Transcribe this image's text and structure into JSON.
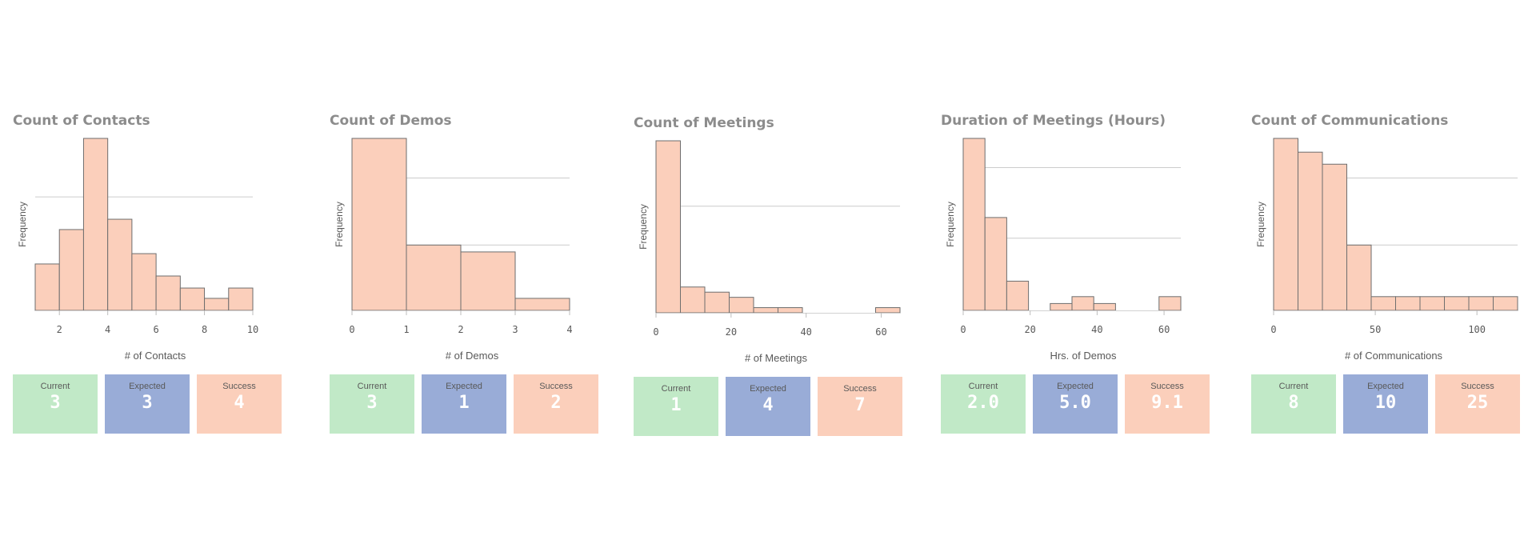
{
  "colors": {
    "bar_fill": "#fbcfbb",
    "bar_stroke": "#6e6e6e",
    "current": "#c1e9c7",
    "expected": "#99acd7",
    "success": "#fbcfbb",
    "title": "#8c8c8c"
  },
  "chart_data": [
    {
      "type": "bar",
      "title": "Count of Contacts",
      "xlabel": "# of Contacts",
      "ylabel": "Frequency",
      "x_tick_labels": [
        "2",
        "4",
        "6",
        "8",
        "10"
      ],
      "x_ticks": [
        2,
        4,
        6,
        8,
        10
      ],
      "xlim": [
        1,
        10
      ],
      "bins": [
        [
          1,
          2
        ],
        [
          2,
          3
        ],
        [
          3,
          4
        ],
        [
          4,
          5
        ],
        [
          5,
          6
        ],
        [
          6,
          7
        ],
        [
          7,
          8
        ],
        [
          8,
          9
        ],
        [
          9,
          10
        ]
      ],
      "values": [
        27,
        47,
        100,
        53,
        33,
        20,
        13,
        7,
        13
      ],
      "ylim": [
        0,
        100
      ],
      "gridlines": [
        66
      ],
      "grid": true,
      "kpis": [
        {
          "label": "Current",
          "value": "3"
        },
        {
          "label": "Expected",
          "value": "3"
        },
        {
          "label": "Success",
          "value": "4"
        }
      ]
    },
    {
      "type": "bar",
      "title": "Count of Demos",
      "xlabel": "# of Demos",
      "ylabel": "Frequency",
      "x_tick_labels": [
        "0",
        "1",
        "2",
        "3",
        "4"
      ],
      "x_ticks": [
        0,
        1,
        2,
        3,
        4
      ],
      "xlim": [
        0,
        4
      ],
      "bins": [
        [
          0,
          1
        ],
        [
          1,
          2
        ],
        [
          2,
          3
        ],
        [
          3,
          4
        ]
      ],
      "values": [
        100,
        38,
        34,
        7
      ],
      "ylim": [
        0,
        100
      ],
      "gridlines": [
        38,
        77
      ],
      "grid": true,
      "kpis": [
        {
          "label": "Current",
          "value": "3"
        },
        {
          "label": "Expected",
          "value": "1"
        },
        {
          "label": "Success",
          "value": "2"
        }
      ]
    },
    {
      "type": "bar",
      "title": "Count of Meetings",
      "xlabel": "# of Meetings",
      "ylabel": "Frequency",
      "x_tick_labels": [
        "0",
        "20",
        "40",
        "60"
      ],
      "x_ticks": [
        0,
        20,
        40,
        60
      ],
      "xlim": [
        0,
        65
      ],
      "bins": [
        [
          0,
          6.5
        ],
        [
          6.5,
          13
        ],
        [
          13,
          19.5
        ],
        [
          19.5,
          26
        ],
        [
          26,
          32.5
        ],
        [
          32.5,
          39
        ],
        [
          39,
          45.5
        ],
        [
          45.5,
          52
        ],
        [
          52,
          58.5
        ],
        [
          58.5,
          65
        ]
      ],
      "values": [
        100,
        15,
        12,
        9,
        3,
        3,
        0,
        0,
        0,
        3
      ],
      "ylim": [
        0,
        100
      ],
      "gridlines": [
        62
      ],
      "grid": true,
      "kpis": [
        {
          "label": "Current",
          "value": "1"
        },
        {
          "label": "Expected",
          "value": "4"
        },
        {
          "label": "Success",
          "value": "7"
        }
      ]
    },
    {
      "type": "bar",
      "title": "Duration of Meetings (Hours)",
      "xlabel": "Hrs. of Demos",
      "ylabel": "Frequency",
      "x_tick_labels": [
        "0",
        "20",
        "40",
        "60"
      ],
      "x_ticks": [
        0,
        20,
        40,
        60
      ],
      "xlim": [
        0,
        65
      ],
      "bins": [
        [
          0,
          6.5
        ],
        [
          6.5,
          13
        ],
        [
          13,
          19.5
        ],
        [
          19.5,
          26
        ],
        [
          26,
          32.5
        ],
        [
          32.5,
          39
        ],
        [
          39,
          45.5
        ],
        [
          45.5,
          52
        ],
        [
          52,
          58.5
        ],
        [
          58.5,
          65
        ]
      ],
      "values": [
        100,
        54,
        17,
        0,
        4,
        8,
        4,
        0,
        0,
        8
      ],
      "ylim": [
        0,
        100
      ],
      "gridlines": [
        42,
        83
      ],
      "grid": true,
      "kpis": [
        {
          "label": "Current",
          "value": "2.0"
        },
        {
          "label": "Expected",
          "value": "5.0"
        },
        {
          "label": "Success",
          "value": "9.1"
        }
      ]
    },
    {
      "type": "bar",
      "title": "Count of Communications",
      "xlabel": "# of Communications",
      "ylabel": "Frequency",
      "x_tick_labels": [
        "0",
        "50",
        "100"
      ],
      "x_ticks": [
        0,
        50,
        100
      ],
      "xlim": [
        0,
        120
      ],
      "bins": [
        [
          0,
          12
        ],
        [
          12,
          24
        ],
        [
          24,
          36
        ],
        [
          36,
          48
        ],
        [
          48,
          60
        ],
        [
          60,
          72
        ],
        [
          72,
          84
        ],
        [
          84,
          96
        ],
        [
          96,
          108
        ],
        [
          108,
          120
        ]
      ],
      "values": [
        100,
        92,
        85,
        38,
        8,
        8,
        8,
        8,
        8,
        8
      ],
      "ylim": [
        0,
        100
      ],
      "gridlines": [
        38,
        77
      ],
      "grid": true,
      "kpis": [
        {
          "label": "Current",
          "value": "8"
        },
        {
          "label": "Expected",
          "value": "10"
        },
        {
          "label": "Success",
          "value": "25"
        }
      ]
    }
  ]
}
